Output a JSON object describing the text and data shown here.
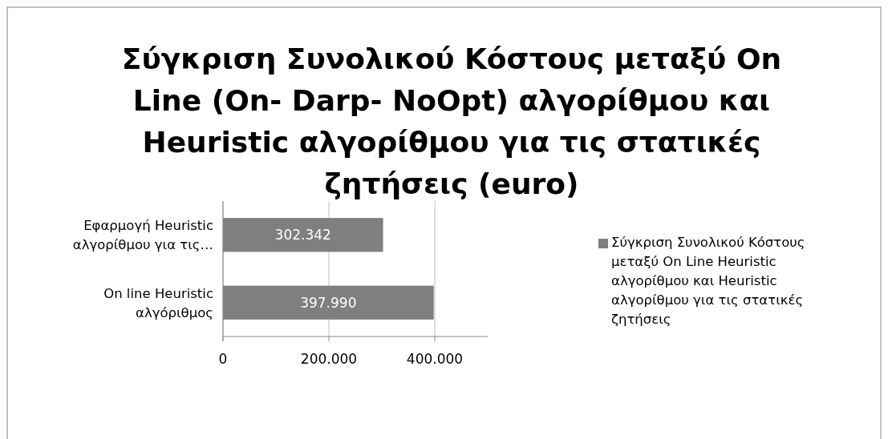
{
  "chart_data": {
    "type": "bar",
    "orientation": "horizontal",
    "title": "Σύγκριση Συνολικού Κόστους μεταξύ On Line (On- Darp- NoOpt) αλγορίθμου και Heuristic αλγορίθμου για τις στατικές ζητήσεις (euro)",
    "categories": [
      "Εφαρμογή Heuristic αλγορίθμου για τις…",
      "On line Heuristic αλγόριθμος"
    ],
    "series": [
      {
        "name": "Σύγκριση Συνολικού Κόστους μεταξύ On Line Heuristic αλγορίθμου και Heuristic αλγορίθμου για τις στατικές ζητήσεις",
        "color": "#7f7f7f",
        "values": [
          302342,
          397990
        ],
        "value_labels": [
          "302.342",
          "397.990"
        ]
      }
    ],
    "xlim": [
      0,
      500000
    ],
    "xticks": [
      0,
      {
        "value": 200000,
        "label": "200.000"
      },
      {
        "value": 400000,
        "label": "400.000"
      }
    ],
    "grid": "x",
    "legend": "right"
  }
}
